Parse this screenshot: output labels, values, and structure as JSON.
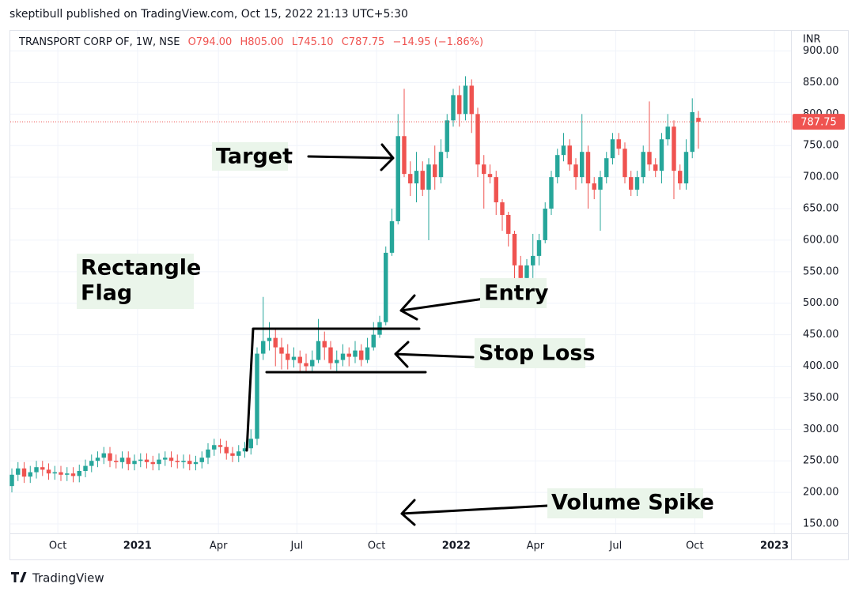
{
  "header": "skeptibull published on TradingView.com, Oct 15, 2022 21:13 UTC+5:30",
  "footer": "TradingView",
  "chart_data": {
    "type": "candlestick",
    "symbol": "TRANSPORT CORP OF, 1W, NSE",
    "ohlc_labels": [
      "O794.00",
      "H805.00",
      "L745.10",
      "C787.75",
      "−14.95 (−1.86%)"
    ],
    "currency": "INR",
    "annotations": {
      "target": "Target",
      "flag": [
        "Rectangle",
        "Flag"
      ],
      "entry": "Entry",
      "stop_loss": "Stop Loss",
      "volume_spike": "Volume Spike"
    },
    "up_color": "#26a69a",
    "down_color": "#ef5350",
    "grid": true,
    "x": [
      0,
      1,
      2,
      3,
      4,
      5,
      6,
      7,
      8,
      9,
      10,
      11,
      12,
      13,
      14,
      15,
      16,
      17,
      18,
      19,
      20,
      21,
      22,
      23,
      24,
      25,
      26,
      27,
      28,
      29,
      30,
      31,
      32,
      33,
      34,
      35,
      36,
      37,
      38,
      39,
      40,
      41,
      42,
      43,
      44,
      45,
      46,
      47,
      48,
      49,
      50,
      51,
      52,
      53,
      54,
      55,
      56,
      57,
      58,
      59,
      60,
      61,
      62,
      63,
      64,
      65,
      66,
      67,
      68,
      69,
      70,
      71,
      72,
      73,
      74,
      75,
      76,
      77,
      78,
      79,
      80,
      81,
      82,
      83,
      84,
      85,
      86,
      87,
      88,
      89,
      90,
      91,
      92,
      93,
      94,
      95,
      96,
      97,
      98,
      99,
      100,
      101,
      102,
      103,
      104,
      105,
      106,
      107,
      108,
      109,
      110,
      111,
      112
    ],
    "open": [
      210,
      228,
      238,
      225,
      232,
      240,
      236,
      230,
      232,
      228,
      230,
      226,
      234,
      242,
      250,
      255,
      262,
      250,
      248,
      255,
      245,
      250,
      252,
      248,
      245,
      252,
      255,
      250,
      248,
      250,
      245,
      248,
      255,
      268,
      275,
      272,
      262,
      258,
      265,
      270,
      285,
      420,
      440,
      445,
      430,
      420,
      410,
      415,
      405,
      400,
      410,
      440,
      430,
      405,
      410,
      420,
      415,
      425,
      410,
      430,
      450,
      470,
      580,
      630,
      765,
      705,
      690,
      710,
      680,
      720,
      700,
      740,
      790,
      830,
      800,
      845,
      800,
      720,
      705,
      700,
      660,
      640,
      610,
      560,
      540,
      560,
      575,
      600,
      650,
      700,
      735,
      750,
      720,
      700,
      740,
      690,
      680,
      700,
      730,
      760,
      745,
      700,
      680,
      700,
      740,
      720,
      710,
      760,
      780,
      710,
      690,
      740,
      794
    ],
    "high": [
      238,
      248,
      248,
      242,
      250,
      250,
      246,
      242,
      242,
      240,
      240,
      244,
      252,
      260,
      265,
      272,
      272,
      260,
      265,
      265,
      260,
      262,
      262,
      258,
      262,
      265,
      265,
      260,
      260,
      260,
      258,
      265,
      278,
      285,
      285,
      282,
      272,
      275,
      280,
      300,
      430,
      510,
      470,
      460,
      445,
      435,
      430,
      425,
      420,
      425,
      475,
      455,
      440,
      425,
      435,
      430,
      440,
      435,
      445,
      470,
      480,
      590,
      650,
      800,
      840,
      725,
      740,
      725,
      730,
      750,
      760,
      800,
      840,
      845,
      860,
      855,
      810,
      735,
      720,
      710,
      665,
      645,
      615,
      575,
      570,
      610,
      610,
      660,
      710,
      745,
      770,
      760,
      730,
      800,
      750,
      700,
      710,
      740,
      770,
      770,
      755,
      710,
      710,
      750,
      820,
      730,
      770,
      800,
      790,
      720,
      760,
      825,
      805
    ],
    "low": [
      200,
      218,
      215,
      215,
      222,
      226,
      220,
      220,
      218,
      218,
      216,
      216,
      224,
      232,
      240,
      245,
      240,
      238,
      238,
      235,
      235,
      240,
      238,
      235,
      235,
      242,
      240,
      238,
      238,
      235,
      235,
      238,
      245,
      258,
      262,
      252,
      248,
      248,
      255,
      260,
      275,
      410,
      425,
      400,
      395,
      395,
      398,
      390,
      390,
      390,
      405,
      410,
      395,
      392,
      400,
      400,
      405,
      400,
      405,
      425,
      445,
      465,
      575,
      625,
      700,
      670,
      660,
      670,
      600,
      680,
      690,
      730,
      780,
      780,
      790,
      770,
      700,
      650,
      690,
      640,
      615,
      590,
      515,
      505,
      530,
      540,
      560,
      595,
      640,
      690,
      725,
      710,
      680,
      690,
      650,
      665,
      615,
      690,
      720,
      735,
      690,
      670,
      670,
      690,
      710,
      700,
      690,
      750,
      665,
      680,
      680,
      730,
      745.1
    ],
    "close": [
      228,
      238,
      225,
      232,
      240,
      236,
      230,
      232,
      228,
      230,
      226,
      234,
      242,
      250,
      255,
      262,
      250,
      248,
      255,
      245,
      250,
      252,
      248,
      245,
      252,
      255,
      250,
      248,
      250,
      245,
      248,
      255,
      268,
      275,
      272,
      262,
      258,
      265,
      270,
      285,
      420,
      440,
      445,
      430,
      420,
      410,
      415,
      405,
      400,
      410,
      440,
      430,
      405,
      410,
      420,
      415,
      425,
      410,
      430,
      450,
      470,
      580,
      630,
      765,
      705,
      690,
      710,
      680,
      720,
      700,
      740,
      790,
      830,
      800,
      845,
      800,
      720,
      705,
      700,
      660,
      640,
      610,
      560,
      540,
      560,
      575,
      600,
      650,
      700,
      735,
      750,
      720,
      700,
      740,
      690,
      680,
      700,
      730,
      760,
      745,
      700,
      680,
      700,
      740,
      720,
      710,
      760,
      780,
      710,
      690,
      740,
      803,
      787.75
    ],
    "xlim": [
      -0.26,
      127.1
    ],
    "xticks": [
      {
        "value": 7.5,
        "label": "Oct"
      },
      {
        "value": 20.5,
        "label": "2021"
      },
      {
        "value": 33.7,
        "label": "Apr"
      },
      {
        "value": 46.5,
        "label": "Jul"
      },
      {
        "value": 59.5,
        "label": "Oct"
      },
      {
        "value": 72.5,
        "label": "2022"
      },
      {
        "value": 85.4,
        "label": "Apr"
      },
      {
        "value": 98.5,
        "label": "Jul"
      },
      {
        "value": 111.4,
        "label": "Oct"
      },
      {
        "value": 124.4,
        "label": "2023"
      }
    ],
    "ylim": [
      135,
      932
    ],
    "yticks": [
      {
        "value": 150,
        "label": "150.00"
      },
      {
        "value": 200,
        "label": "200.00"
      },
      {
        "value": 250,
        "label": "250.00"
      },
      {
        "value": 300,
        "label": "300.00"
      },
      {
        "value": 350,
        "label": "350.00"
      },
      {
        "value": 400,
        "label": "400.00"
      },
      {
        "value": 450,
        "label": "450.00"
      },
      {
        "value": 500,
        "label": "500.00"
      },
      {
        "value": 550,
        "label": "550.00"
      },
      {
        "value": 600,
        "label": "600.00"
      },
      {
        "value": 650,
        "label": "650.00"
      },
      {
        "value": 700,
        "label": "700.00"
      },
      {
        "value": 750,
        "label": "750.00"
      },
      {
        "value": 800,
        "label": "800.00"
      },
      {
        "value": 850,
        "label": "850.00"
      },
      {
        "value": 900,
        "label": "900.00"
      }
    ]
  }
}
